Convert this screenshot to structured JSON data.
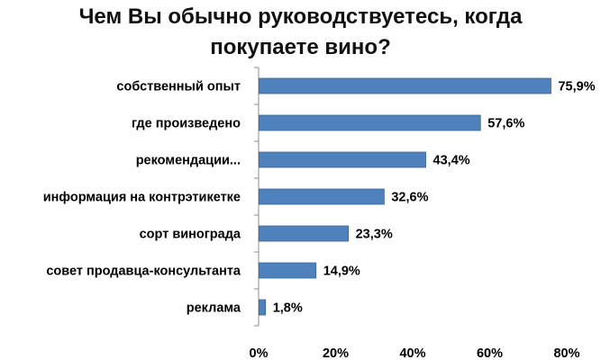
{
  "chart_data": {
    "type": "bar",
    "orientation": "horizontal",
    "title_lines": [
      "Чем Вы обычно руководствуетесь, когда",
      "покупаете вино?"
    ],
    "categories": [
      "собственный опыт",
      "где произведено",
      "рекомендации...",
      "информация на контрэтикетке",
      "сорт винограда",
      "совет продавца-консультанта",
      "реклама"
    ],
    "values": [
      75.9,
      57.6,
      43.4,
      32.6,
      23.3,
      14.9,
      1.8
    ],
    "value_labels": [
      "75,9%",
      "57,6%",
      "43,4%",
      "32,6%",
      "23,3%",
      "14,9%",
      "1,8%"
    ],
    "xlim": [
      0,
      80
    ],
    "x_ticks": [
      0,
      20,
      40,
      60,
      80
    ],
    "x_tick_labels": [
      "0%",
      "20%",
      "40%",
      "60%",
      "80%"
    ],
    "grid": false,
    "legend": "none",
    "bar_color": "#4f81bd",
    "bar_edge_color": "#3a6593",
    "axis_color": "#8c8c8c"
  }
}
